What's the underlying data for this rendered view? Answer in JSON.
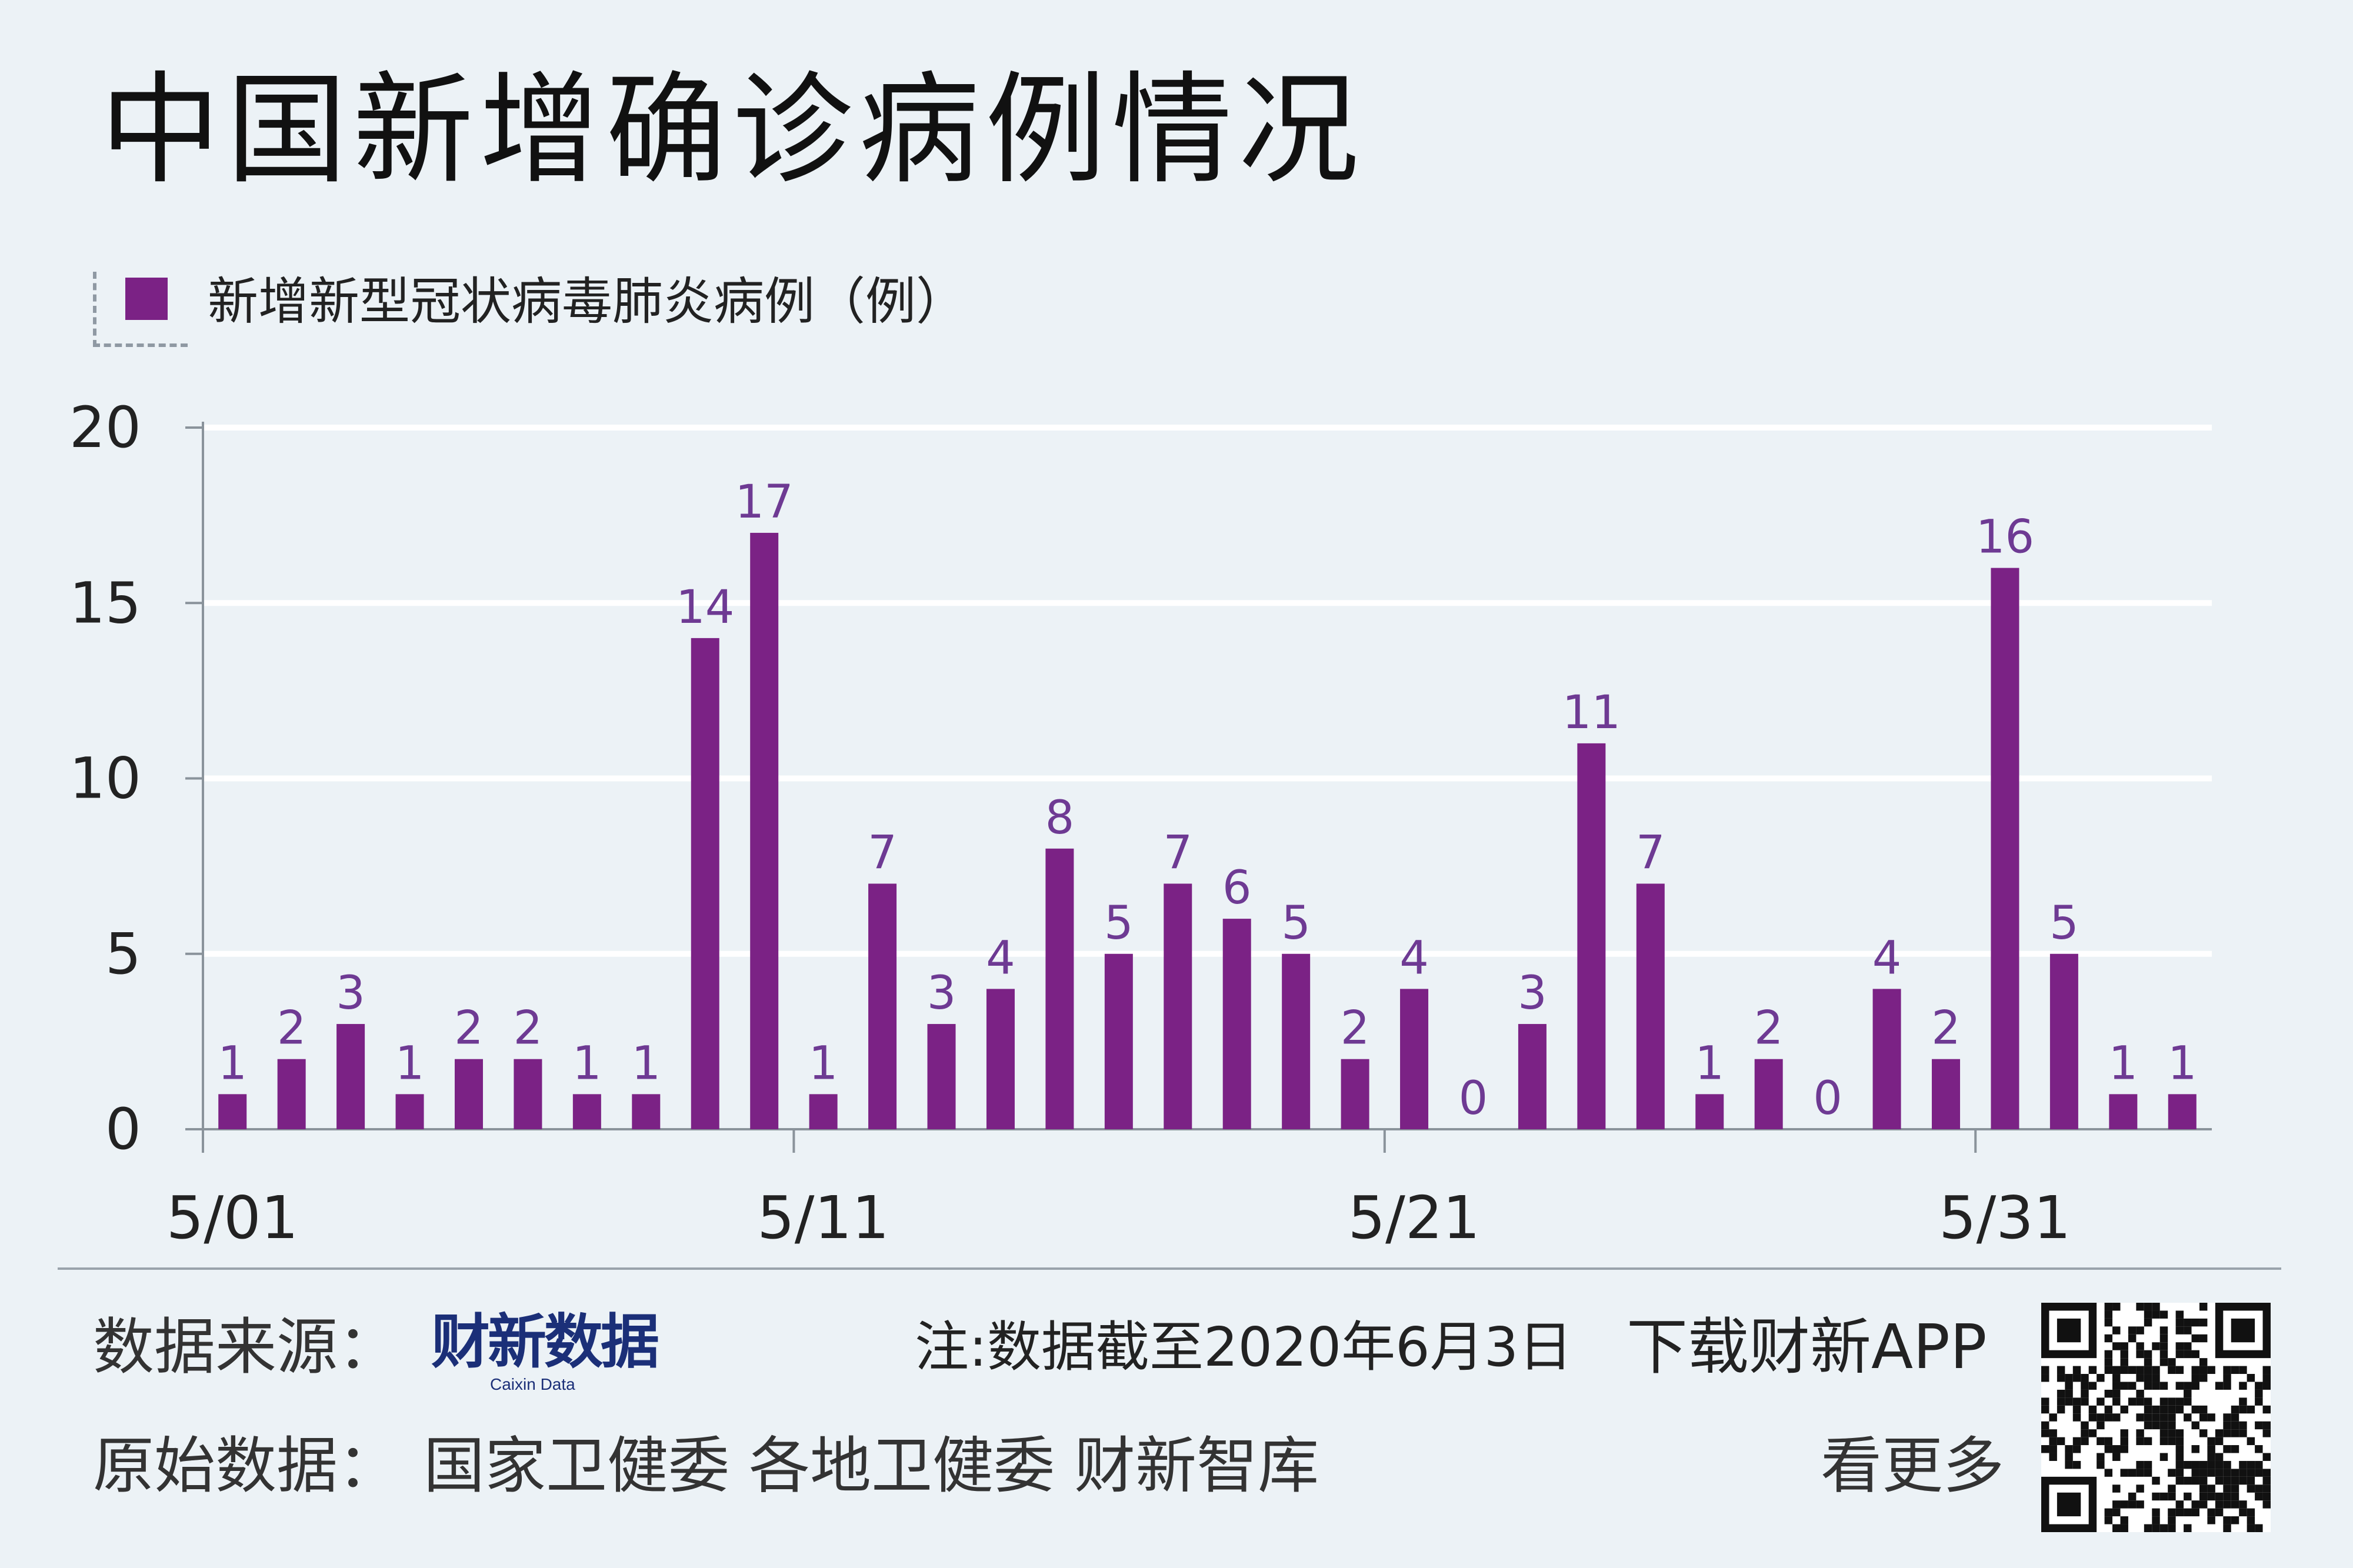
{
  "title": "中国新增确诊病例情况",
  "legend": {
    "label": "新增新型冠状病毒肺炎病例（例）",
    "color": "#7b2285"
  },
  "chart_data": {
    "type": "bar",
    "legend": [
      "新增新型冠状病毒肺炎病例（例）"
    ],
    "x_tick_labels": [
      "5/01",
      "5/11",
      "5/21",
      "5/31"
    ],
    "categories": [
      "5/01",
      "5/02",
      "5/03",
      "5/04",
      "5/05",
      "5/06",
      "5/07",
      "5/08",
      "5/09",
      "5/10",
      "5/11",
      "5/12",
      "5/13",
      "5/14",
      "5/15",
      "5/16",
      "5/17",
      "5/18",
      "5/19",
      "5/20",
      "5/21",
      "5/22",
      "5/23",
      "5/24",
      "5/25",
      "5/26",
      "5/27",
      "5/28",
      "5/29",
      "5/30",
      "5/31",
      "6/01",
      "6/02",
      "6/03"
    ],
    "values": [
      1,
      2,
      3,
      1,
      2,
      2,
      1,
      1,
      14,
      17,
      1,
      7,
      3,
      4,
      8,
      5,
      7,
      6,
      5,
      2,
      4,
      0,
      3,
      11,
      7,
      1,
      2,
      0,
      4,
      2,
      16,
      5,
      1,
      1
    ],
    "ylim": [
      0,
      20
    ],
    "yticks": [
      0,
      5,
      10,
      15,
      20
    ],
    "grid": true,
    "bar_color": "#7b2285",
    "label_color": "#6e3a93"
  },
  "footer": {
    "source_label": "数据来源：",
    "brand_cn": "财新数据",
    "brand_en": "Caixin Data",
    "note": "注:数据截至2020年6月3日",
    "download": "下载财新APP",
    "original_label": "原始数据：",
    "original_sources": "国家卫健委  各地卫健委  财新智库",
    "see_more": "看更多"
  },
  "watermark": "财新数据",
  "colors": {
    "background": "#ecf2f6",
    "grid": "#ffffff",
    "axis": "#8a939b"
  }
}
